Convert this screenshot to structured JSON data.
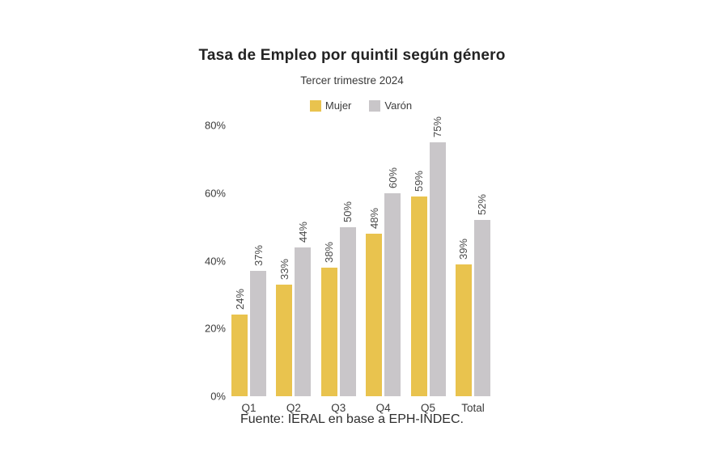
{
  "chart": {
    "title": "Tasa de Empleo por quintil según género",
    "subtitle": "Tercer trimestre 2024",
    "footer": "Fuente: IERAL en base a EPH-INDEC."
  },
  "chart_data": {
    "type": "bar",
    "title": "Tasa de Empleo por quintil según género",
    "subtitle": "Tercer trimestre 2024",
    "categories": [
      "Q1",
      "Q2",
      "Q3",
      "Q4",
      "Q5",
      "Total"
    ],
    "series": [
      {
        "name": "Mujer",
        "key": "mujer",
        "color": "#e9c34e",
        "values": [
          24,
          33,
          38,
          48,
          59,
          39
        ]
      },
      {
        "name": "Varón",
        "key": "varon",
        "color": "#c9c6c9",
        "values": [
          37,
          44,
          50,
          60,
          75,
          52
        ]
      }
    ],
    "value_suffix": "%",
    "xlabel": "",
    "ylabel": "",
    "ylim": [
      0,
      80
    ],
    "yticks": [
      "0%",
      "20%",
      "40%",
      "60%",
      "80%"
    ],
    "grid": false,
    "axis_lines": false,
    "legend_position": "top-center",
    "value_labels": "rotated-90-above-bars",
    "source": "Fuente: IERAL en base a EPH-INDEC."
  }
}
